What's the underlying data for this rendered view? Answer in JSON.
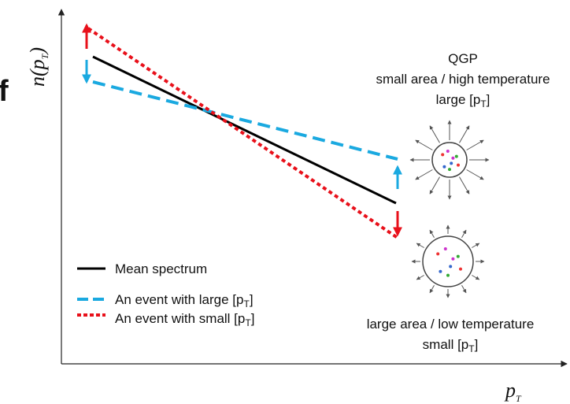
{
  "cropped_text": "f",
  "axes": {
    "y_label": {
      "main": "n(p",
      "sub": "T",
      "end": ")"
    },
    "x_label": {
      "main": "p",
      "sub": "T"
    }
  },
  "legend": [
    {
      "text": "Mean spectrum"
    },
    {
      "text": "An event with large [p",
      "sub": "T",
      "end": "]"
    },
    {
      "text": "An event with small [p",
      "sub": "T",
      "end": "]"
    }
  ],
  "annotations": {
    "top": {
      "title": "QGP",
      "line1": "small area / high temperature",
      "line2": {
        "text": "large [p",
        "sub": "T",
        "end": "]"
      }
    },
    "bottom": {
      "line1": "large area / low temperature",
      "line2": {
        "text": "small [p",
        "sub": "T",
        "end": "]"
      }
    }
  }
}
